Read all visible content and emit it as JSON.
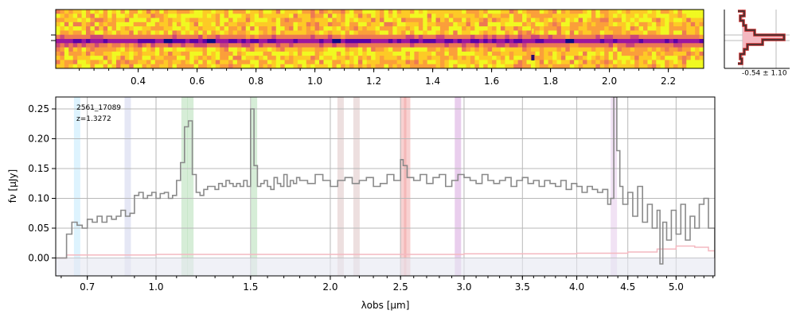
{
  "chart_data": [
    {
      "type": "heatmap",
      "role": "2d-spectrum",
      "colormap": "plasma",
      "top_tick_labels": [
        "0.4",
        "0.6",
        "0.8",
        "1.0",
        "1.2",
        "1.4",
        "1.6",
        "1.8",
        "2.0",
        "2.2"
      ],
      "top_tick_values": [
        0.4,
        0.6,
        0.8,
        1.0,
        1.2,
        1.4,
        1.6,
        1.8,
        2.0,
        2.2
      ],
      "xlim": [
        0.12,
        2.32
      ],
      "trace": "dark horizontal trace across the full width, darkest near 0.5, 0.65, 1.07 and 1.87",
      "bright_spot_x": 1.74
    },
    {
      "type": "area",
      "role": "spatial-profile",
      "annotation": "-0.54 ± 1.10",
      "colors": {
        "fill": "#f4b8c0",
        "line": "#333333",
        "outline": "#c62828"
      }
    },
    {
      "type": "line",
      "role": "1d-spectrum",
      "label": "2561_17089",
      "redshift_label": "z=1.3272",
      "xlabel": "λobs [μm]",
      "ylabel": "fν [μJy]",
      "xlim": [
        0.58,
        5.42
      ],
      "ylim": [
        -0.03,
        0.27
      ],
      "x_tick_labels": [
        "0.7",
        "1.0",
        "1.5",
        "2.0",
        "2.5",
        "3.0",
        "3.5",
        "4.0",
        "4.5",
        "5.0"
      ],
      "x_tick_values": [
        0.7,
        1.0,
        1.5,
        2.0,
        2.5,
        3.0,
        3.5,
        4.0,
        4.5,
        5.0
      ],
      "y_tick_labels": [
        "0.00",
        "0.05",
        "0.10",
        "0.15",
        "0.20",
        "0.25"
      ],
      "y_tick_values": [
        0.0,
        0.05,
        0.1,
        0.15,
        0.2,
        0.25
      ],
      "grid": true,
      "colors": {
        "flux": "#8a8a8a",
        "error": "#f4b8c0",
        "zero_band": "#e6e8f2"
      },
      "line_markers": [
        {
          "x": 0.66,
          "color": "#b3e5fc"
        },
        {
          "x": 0.87,
          "color": "#c5cae9"
        },
        {
          "x": 1.14,
          "color": "#a5d6a7"
        },
        {
          "x": 1.17,
          "color": "#a5d6a7"
        },
        {
          "x": 1.52,
          "color": "#a5d6a7"
        },
        {
          "x": 2.07,
          "color": "#d7b8b8"
        },
        {
          "x": 2.18,
          "color": "#d7b8b8"
        },
        {
          "x": 2.52,
          "color": "#ef9a9a"
        },
        {
          "x": 2.55,
          "color": "#ef9a9a"
        },
        {
          "x": 2.95,
          "color": "#ce93d8"
        },
        {
          "x": 4.36,
          "color": "#e1bee7"
        }
      ],
      "spectrum_x": [
        0.58,
        0.6,
        0.62,
        0.64,
        0.66,
        0.68,
        0.7,
        0.72,
        0.74,
        0.76,
        0.78,
        0.8,
        0.82,
        0.84,
        0.86,
        0.88,
        0.9,
        0.92,
        0.94,
        0.96,
        0.98,
        1.0,
        1.02,
        1.04,
        1.06,
        1.08,
        1.1,
        1.12,
        1.14,
        1.16,
        1.18,
        1.2,
        1.22,
        1.24,
        1.26,
        1.28,
        1.3,
        1.32,
        1.34,
        1.36,
        1.38,
        1.4,
        1.42,
        1.44,
        1.46,
        1.48,
        1.5,
        1.52,
        1.54,
        1.56,
        1.58,
        1.6,
        1.62,
        1.64,
        1.66,
        1.68,
        1.7,
        1.72,
        1.74,
        1.76,
        1.78,
        1.8,
        1.85,
        1.9,
        1.95,
        2.0,
        2.05,
        2.1,
        2.15,
        2.2,
        2.25,
        2.3,
        2.35,
        2.4,
        2.45,
        2.5,
        2.52,
        2.55,
        2.6,
        2.65,
        2.7,
        2.75,
        2.8,
        2.85,
        2.9,
        2.95,
        3.0,
        3.05,
        3.1,
        3.15,
        3.2,
        3.25,
        3.3,
        3.35,
        3.4,
        3.45,
        3.5,
        3.55,
        3.6,
        3.65,
        3.7,
        3.75,
        3.8,
        3.85,
        3.9,
        3.95,
        4.0,
        4.05,
        4.1,
        4.15,
        4.2,
        4.25,
        4.3,
        4.33,
        4.36,
        4.39,
        4.42,
        4.45,
        4.5,
        4.55,
        4.6,
        4.65,
        4.7,
        4.75,
        4.8,
        4.83,
        4.86,
        4.9,
        4.95,
        5.0,
        5.05,
        5.1,
        5.15,
        5.2,
        5.25,
        5.3,
        5.35,
        5.42
      ],
      "spectrum_y": [
        0.0,
        0.0,
        0.04,
        0.06,
        0.055,
        0.05,
        0.065,
        0.06,
        0.07,
        0.06,
        0.07,
        0.065,
        0.07,
        0.08,
        0.07,
        0.075,
        0.105,
        0.11,
        0.1,
        0.105,
        0.11,
        0.1,
        0.108,
        0.11,
        0.1,
        0.105,
        0.13,
        0.16,
        0.22,
        0.23,
        0.14,
        0.11,
        0.105,
        0.115,
        0.12,
        0.12,
        0.115,
        0.125,
        0.12,
        0.13,
        0.125,
        0.12,
        0.125,
        0.12,
        0.13,
        0.12,
        0.25,
        0.155,
        0.12,
        0.125,
        0.13,
        0.12,
        0.115,
        0.135,
        0.125,
        0.12,
        0.14,
        0.12,
        0.13,
        0.125,
        0.135,
        0.13,
        0.125,
        0.14,
        0.13,
        0.12,
        0.13,
        0.135,
        0.125,
        0.13,
        0.135,
        0.12,
        0.125,
        0.14,
        0.13,
        0.165,
        0.155,
        0.135,
        0.13,
        0.14,
        0.125,
        0.135,
        0.14,
        0.12,
        0.13,
        0.14,
        0.135,
        0.13,
        0.125,
        0.14,
        0.13,
        0.125,
        0.13,
        0.135,
        0.12,
        0.13,
        0.135,
        0.125,
        0.13,
        0.12,
        0.13,
        0.125,
        0.12,
        0.13,
        0.115,
        0.125,
        0.12,
        0.11,
        0.12,
        0.115,
        0.11,
        0.115,
        0.09,
        0.1,
        0.27,
        0.18,
        0.12,
        0.09,
        0.11,
        0.07,
        0.12,
        0.06,
        0.09,
        0.05,
        0.08,
        -0.01,
        0.06,
        0.03,
        0.08,
        0.04,
        0.09,
        0.03,
        0.07,
        0.05,
        0.09,
        0.1,
        0.05,
        0.0
      ],
      "error_x": [
        0.58,
        0.6,
        0.62,
        1.0,
        2.0,
        3.0,
        4.0,
        4.5,
        4.8,
        5.0,
        5.2,
        5.35,
        5.42
      ],
      "error_y": [
        0.0,
        0.0,
        0.005,
        0.006,
        0.006,
        0.007,
        0.008,
        0.01,
        0.015,
        0.02,
        0.018,
        0.012,
        0.0
      ]
    }
  ]
}
